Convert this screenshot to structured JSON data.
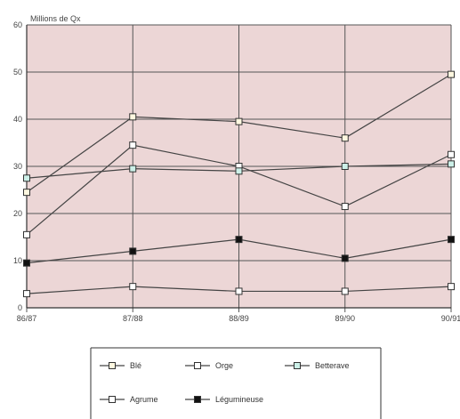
{
  "chart_data": {
    "type": "line",
    "ylabel": "Millions de Qx",
    "categories": [
      "86/87",
      "87/88",
      "88/89",
      "89/90",
      "90/91"
    ],
    "y_ticks": [
      "0",
      "10",
      "20",
      "30",
      "40",
      "50",
      "60"
    ],
    "ylim": [
      0,
      60
    ],
    "grid": true,
    "legend_position": "bottom",
    "background_color": "#ecd6d6",
    "series": [
      {
        "name": "Blé",
        "values": [
          24.5,
          40.5,
          39.5,
          36,
          49.5
        ],
        "marker": "open-square",
        "color": "#444444",
        "marker_fill": "#fff8e0"
      },
      {
        "name": "Orge",
        "values": [
          15.5,
          34.5,
          30,
          21.5,
          32.5
        ],
        "marker": "open-square",
        "color": "#444444",
        "marker_fill": "#ffffff"
      },
      {
        "name": "Betterave",
        "values": [
          27.5,
          29.5,
          29,
          30,
          30.5
        ],
        "marker": "open-square",
        "color": "#444444",
        "marker_fill": "#ccf0e8"
      },
      {
        "name": "Agrume",
        "values": [
          3,
          4.5,
          3.5,
          3.5,
          4.5
        ],
        "marker": "open-square",
        "color": "#444444",
        "marker_fill": "#ffffff"
      },
      {
        "name": "Légumineuse",
        "values": [
          9.5,
          12,
          14.5,
          10.5,
          14.5
        ],
        "marker": "filled-square",
        "color": "#444444",
        "marker_fill": "#111111"
      }
    ]
  }
}
